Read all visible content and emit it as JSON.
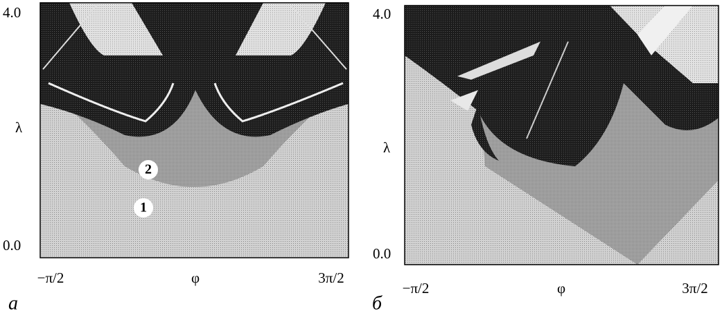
{
  "panels": [
    {
      "y_top": "4.0",
      "y_label": "λ",
      "y_bottom": "0.0",
      "x_left": "−π/2",
      "x_label": "φ",
      "x_right": "3π/2",
      "caption": "а",
      "regions": [
        "2",
        "1"
      ]
    },
    {
      "y_top": "4.0",
      "y_label": "λ",
      "y_bottom": "0.0",
      "x_left": "−π/2",
      "x_label": "φ",
      "x_right": "3π/2",
      "caption": "б"
    }
  ]
}
